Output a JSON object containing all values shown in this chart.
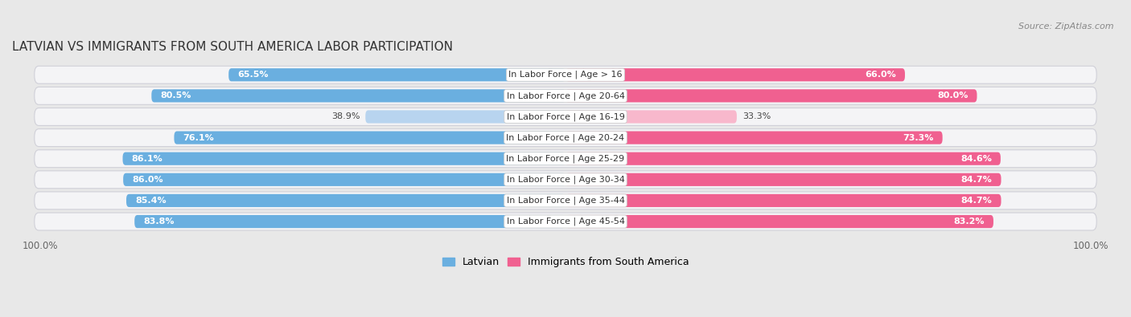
{
  "title": "LATVIAN VS IMMIGRANTS FROM SOUTH AMERICA LABOR PARTICIPATION",
  "source": "Source: ZipAtlas.com",
  "categories": [
    "In Labor Force | Age > 16",
    "In Labor Force | Age 20-64",
    "In Labor Force | Age 16-19",
    "In Labor Force | Age 20-24",
    "In Labor Force | Age 25-29",
    "In Labor Force | Age 30-34",
    "In Labor Force | Age 35-44",
    "In Labor Force | Age 45-54"
  ],
  "latvian_values": [
    65.5,
    80.5,
    38.9,
    76.1,
    86.1,
    86.0,
    85.4,
    83.8
  ],
  "immigrant_values": [
    66.0,
    80.0,
    33.3,
    73.3,
    84.6,
    84.7,
    84.7,
    83.2
  ],
  "latvian_color_dark": "#6aafe0",
  "latvian_color_light": "#b8d4ef",
  "immigrant_color_dark": "#f06090",
  "immigrant_color_light": "#f8b8cc",
  "bar_height": 0.62,
  "max_value": 100.0,
  "bg_color": "#e8e8e8",
  "row_bg": "#f4f4f6",
  "row_border": "#d0d0d8",
  "title_fontsize": 11,
  "label_fontsize": 8,
  "value_fontsize": 8,
  "tick_fontsize": 8.5,
  "legend_fontsize": 9,
  "source_fontsize": 8
}
